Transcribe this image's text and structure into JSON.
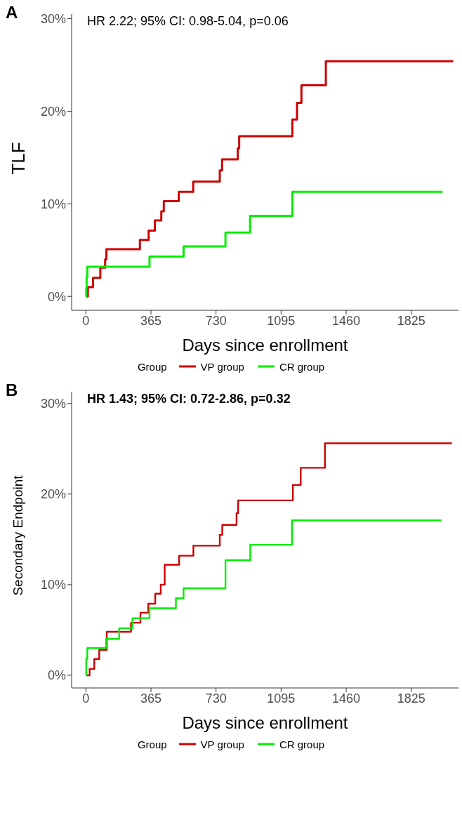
{
  "chart_data": [
    {
      "type": "step",
      "title": "A",
      "xlabel": "Days since enrollment",
      "ylabel": "TLF",
      "legend_title": "Group",
      "legend": "bottom",
      "annotations": [
        "HR 2.22; 95% CI: 0.98-5.04, p=0.06"
      ],
      "xlim": [
        -80,
        2090
      ],
      "xticks": [
        0,
        365,
        730,
        1095,
        1460,
        1825
      ],
      "ylim": [
        -1.5,
        30.5
      ],
      "yticks": [
        {
          "value": 0,
          "label": "0%"
        },
        {
          "value": 10,
          "label": "10%"
        },
        {
          "value": 20,
          "label": "20%"
        },
        {
          "value": 30,
          "label": "30%"
        }
      ],
      "series": [
        {
          "name": "VP group",
          "color": "#cc0000",
          "x": [
            0,
            11,
            40,
            81,
            108,
            115,
            303,
            352,
            387,
            423,
            437,
            521,
            602,
            751,
            764,
            852,
            860,
            1158,
            1184,
            1209,
            1346,
            2060
          ],
          "values": [
            0,
            1.0,
            2.0,
            3.1,
            4.0,
            5.1,
            6.1,
            7.1,
            8.2,
            9.2,
            10.3,
            11.3,
            12.4,
            13.6,
            14.8,
            16.0,
            17.3,
            19.1,
            20.9,
            22.8,
            25.4,
            25.4
          ]
        },
        {
          "name": "CR group",
          "color": "#00ee00",
          "x": [
            0,
            2,
            4,
            8,
            357,
            548,
            783,
            921,
            1158,
            2001
          ],
          "values": [
            0,
            0.9,
            2.1,
            3.2,
            4.3,
            5.4,
            6.9,
            8.7,
            11.3,
            11.3
          ]
        }
      ]
    },
    {
      "type": "step",
      "title": "B",
      "xlabel": "Days since enrollment",
      "ylabel": "Secondary Endpoint",
      "legend_title": "Group",
      "legend": "bottom",
      "annotations": [
        "HR 1.43; 95% CI: 0.72-2.86, p=0.32"
      ],
      "xlim": [
        -80,
        2090
      ],
      "xticks": [
        0,
        365,
        730,
        1095,
        1460,
        1825
      ],
      "ylim": [
        -1.4,
        31.3
      ],
      "yticks": [
        {
          "value": 0,
          "label": "0%"
        },
        {
          "value": 10,
          "label": "10%"
        },
        {
          "value": 20,
          "label": "20%"
        },
        {
          "value": 30,
          "label": "30%"
        }
      ],
      "series": [
        {
          "name": "VP group",
          "color": "#cc0000",
          "x": [
            0,
            21,
            47,
            75,
            117,
            253,
            306,
            350,
            389,
            420,
            442,
            523,
            603,
            751,
            765,
            845,
            854,
            1161,
            1205,
            1341,
            2053
          ],
          "values": [
            0,
            0.7,
            1.8,
            2.8,
            4.8,
            5.8,
            6.9,
            7.9,
            9.0,
            10.0,
            12.2,
            13.2,
            14.3,
            15.5,
            16.6,
            17.9,
            19.3,
            21.0,
            22.9,
            25.6,
            25.6
          ]
        },
        {
          "name": "CR group",
          "color": "#00ee00",
          "x": [
            0,
            2,
            8,
            113,
            187,
            261,
            357,
            505,
            548,
            783,
            922,
            1156,
            1994
          ],
          "values": [
            0,
            1.8,
            3.0,
            4.0,
            5.2,
            6.3,
            7.4,
            8.5,
            9.6,
            12.7,
            14.4,
            17.1,
            17.1
          ]
        }
      ]
    }
  ]
}
